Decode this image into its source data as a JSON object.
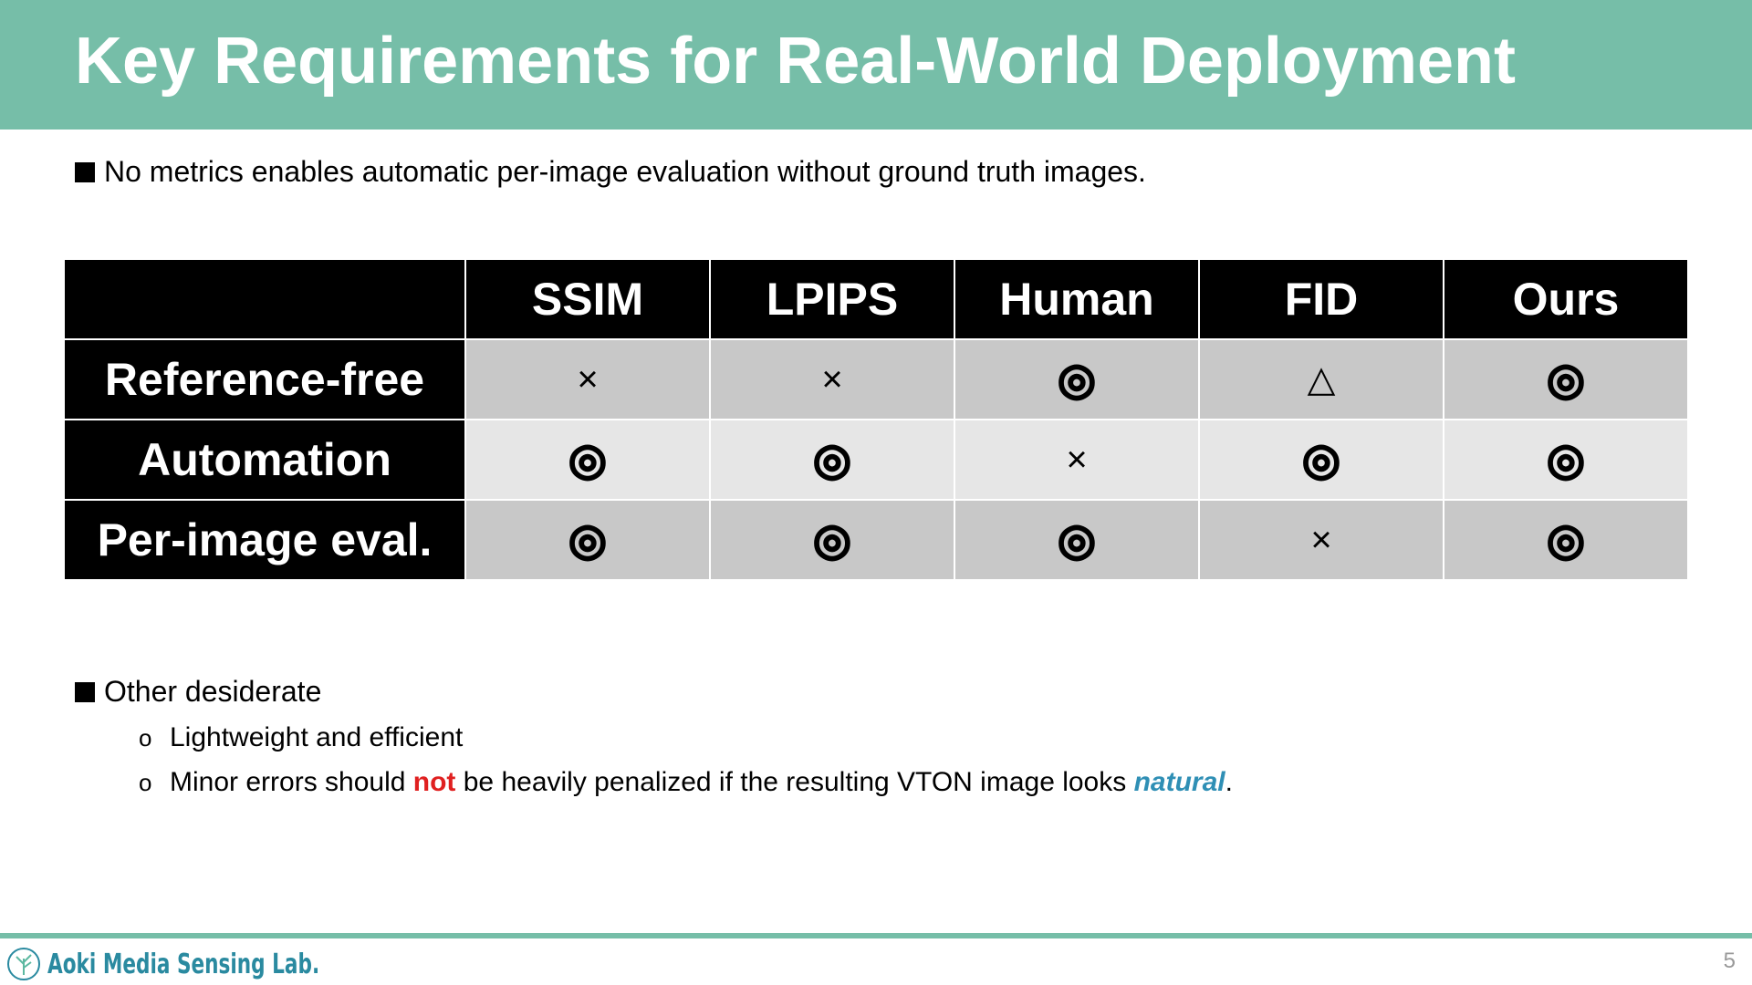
{
  "header": {
    "title": "Key Requirements for Real-World Deployment"
  },
  "bullets": {
    "first": "No metrics enables automatic per-image evaluation without ground truth images.",
    "second": "Other desiderate",
    "sub": [
      [
        "Lightweight and efficient"
      ],
      [
        "Minor errors should ",
        "not",
        " be heavily penalized if the resulting VTON image looks ",
        "natural",
        "."
      ]
    ]
  },
  "table": {
    "columns": [
      "SSIM",
      "LPIPS",
      "Human",
      "FID",
      "Ours"
    ],
    "rows": [
      {
        "label": "Reference-free",
        "cells": [
          "×",
          "×",
          "◎",
          "△",
          "◎"
        ]
      },
      {
        "label": "Automation",
        "cells": [
          "◎",
          "◎",
          "×",
          "◎",
          "◎"
        ]
      },
      {
        "label": "Per-image eval.",
        "cells": [
          "◎",
          "◎",
          "◎",
          "×",
          "◎"
        ]
      }
    ]
  },
  "footer": {
    "lab": "Aoki Media Sensing Lab.",
    "page": "5"
  }
}
